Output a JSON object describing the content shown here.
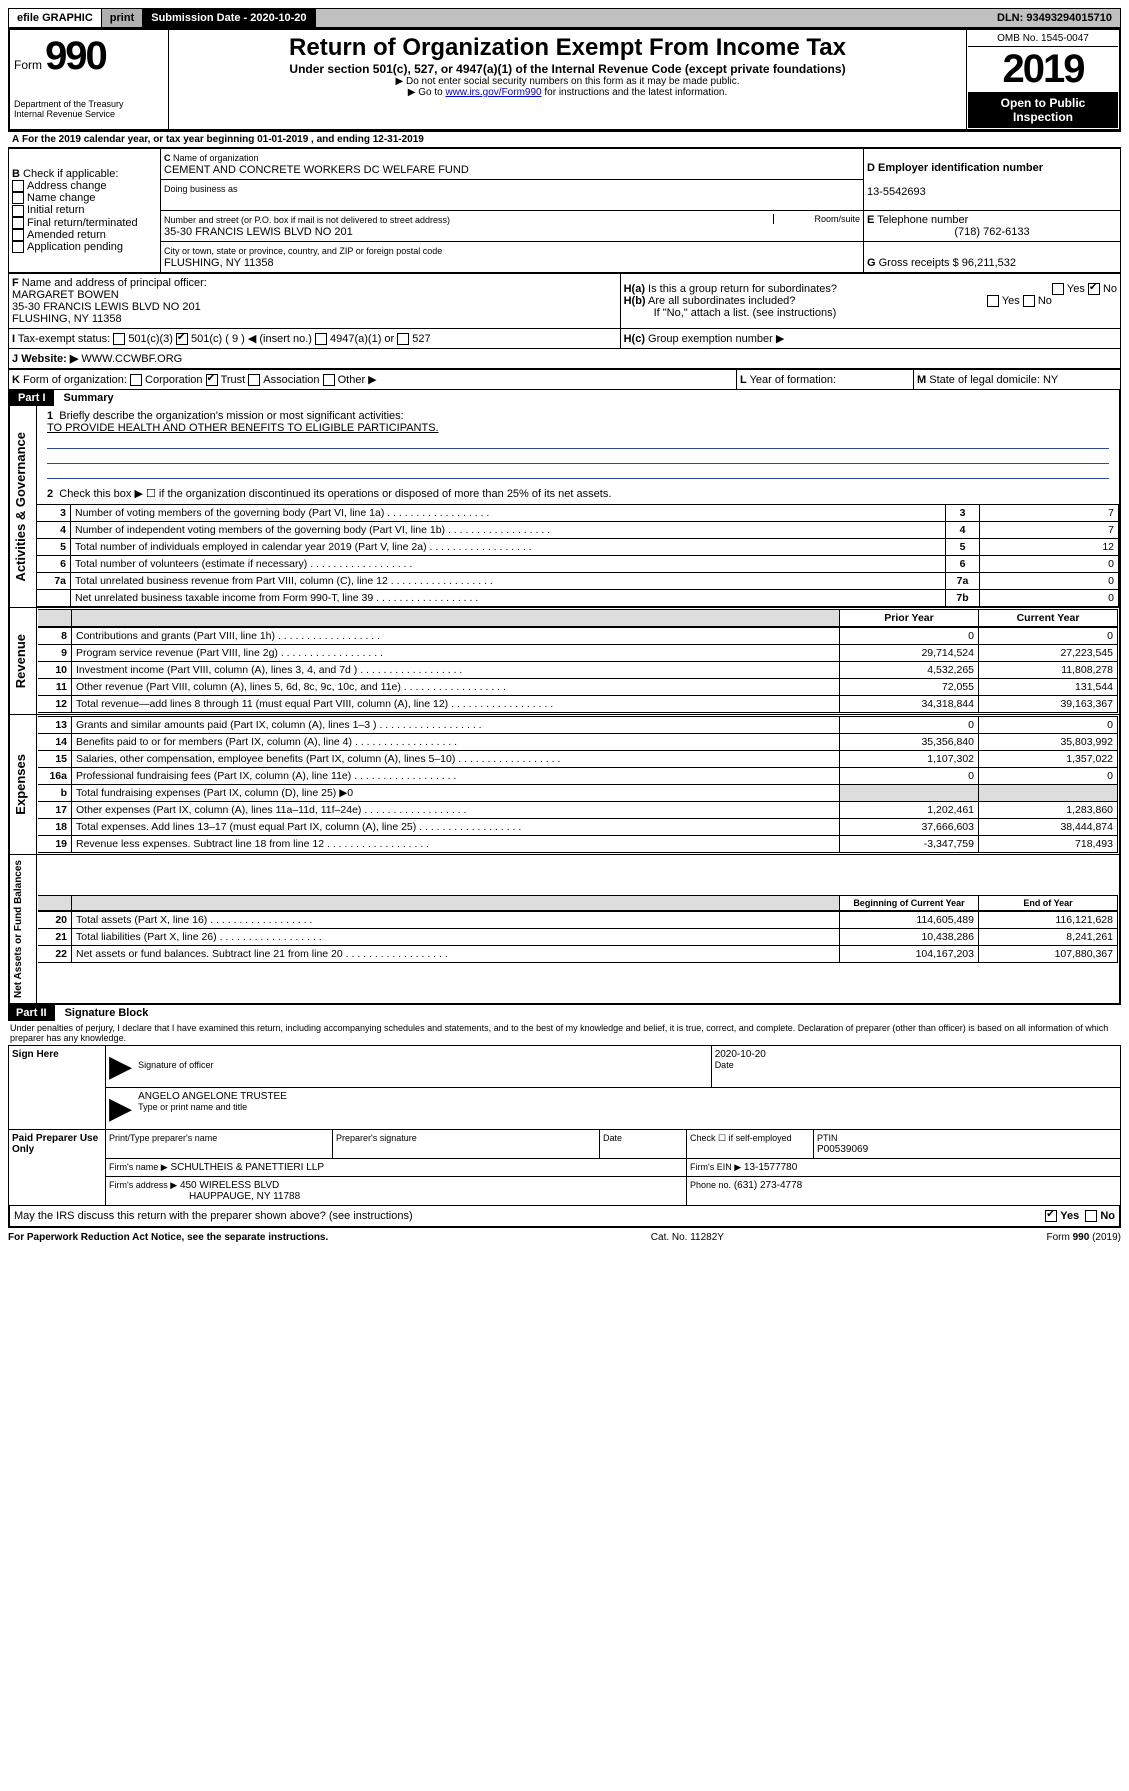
{
  "topbar": {
    "efile": "efile GRAPHIC",
    "print": "print",
    "sub_label": "Submission Date - 2020-10-20",
    "dln": "DLN: 93493294015710"
  },
  "header": {
    "form_prefix": "Form",
    "form_number": "990",
    "dept": "Department of the Treasury",
    "irs": "Internal Revenue Service",
    "title": "Return of Organization Exempt From Income Tax",
    "subtitle": "Under section 501(c), 527, or 4947(a)(1) of the Internal Revenue Code (except private foundations)",
    "note1": "Do not enter social security numbers on this form as it may be made public.",
    "note2_pre": "Go to ",
    "note2_link": "www.irs.gov/Form990",
    "note2_post": " for instructions and the latest information.",
    "omb": "OMB No. 1545-0047",
    "year": "2019",
    "open1": "Open to Public",
    "open2": "Inspection"
  },
  "lineA": "For the 2019 calendar year, or tax year beginning 01-01-2019   , and ending 12-31-2019",
  "secB": {
    "label": "Check if applicable:",
    "opts": [
      "Address change",
      "Name change",
      "Initial return",
      "Final return/terminated",
      "Amended return",
      "Application pending"
    ]
  },
  "secC": {
    "name_label": "Name of organization",
    "name": "CEMENT AND CONCRETE WORKERS DC WELFARE FUND",
    "dba_label": "Doing business as",
    "addr_label": "Number and street (or P.O. box if mail is not delivered to street address)",
    "room_label": "Room/suite",
    "addr": "35-30 FRANCIS LEWIS BLVD NO 201",
    "city_label": "City or town, state or province, country, and ZIP or foreign postal code",
    "city": "FLUSHING, NY  11358"
  },
  "secD": {
    "label": "Employer identification number",
    "val": "13-5542693"
  },
  "secE": {
    "label": "Telephone number",
    "val": "(718) 762-6133"
  },
  "secG": {
    "label": "Gross receipts $",
    "val": "96,211,532"
  },
  "secF": {
    "label": "Name and address of principal officer:",
    "name": "MARGARET BOWEN",
    "addr1": "35-30 FRANCIS LEWIS BLVD NO 201",
    "addr2": "FLUSHING, NY  11358"
  },
  "secH": {
    "a": "Is this a group return for subordinates?",
    "b": "Are all subordinates included?",
    "bnote": "If \"No,\" attach a list. (see instructions)",
    "c": "Group exemption number ▶",
    "yes": "Yes",
    "no": "No"
  },
  "secI": {
    "label": "Tax-exempt status:",
    "opts": [
      "501(c)(3)",
      "501(c) ( 9 ) ◀ (insert no.)",
      "4947(a)(1) or",
      "527"
    ]
  },
  "secJ": {
    "label": "Website: ▶",
    "val": "WWW.CCWBF.ORG"
  },
  "secK": {
    "label": "Form of organization:",
    "opts": [
      "Corporation",
      "Trust",
      "Association",
      "Other ▶"
    ]
  },
  "secL": {
    "label": "Year of formation:"
  },
  "secM": {
    "label": "State of legal domicile:",
    "val": "NY"
  },
  "part1": {
    "hdr": "Part I",
    "title": "Summary",
    "q1_label": "Briefly describe the organization's mission or most significant activities:",
    "q1_text": "TO PROVIDE HEALTH AND OTHER BENEFITS TO ELIGIBLE PARTICIPANTS.",
    "q2": "Check this box ▶ ☐ if the organization discontinued its operations or disposed of more than 25% of its net assets.",
    "vlabel_gov": "Activities & Governance",
    "vlabel_rev": "Revenue",
    "vlabel_exp": "Expenses",
    "vlabel_net": "Net Assets or Fund Balances",
    "col_prior": "Prior Year",
    "col_curr": "Current Year",
    "col_begin": "Beginning of Current Year",
    "col_end": "End of Year",
    "lines_gov": [
      {
        "n": "3",
        "d": "Number of voting members of the governing body (Part VI, line 1a)",
        "box": "3",
        "v": "7"
      },
      {
        "n": "4",
        "d": "Number of independent voting members of the governing body (Part VI, line 1b)",
        "box": "4",
        "v": "7"
      },
      {
        "n": "5",
        "d": "Total number of individuals employed in calendar year 2019 (Part V, line 2a)",
        "box": "5",
        "v": "12"
      },
      {
        "n": "6",
        "d": "Total number of volunteers (estimate if necessary)",
        "box": "6",
        "v": "0"
      },
      {
        "n": "7a",
        "d": "Total unrelated business revenue from Part VIII, column (C), line 12",
        "box": "7a",
        "v": "0"
      },
      {
        "n": "",
        "d": "Net unrelated business taxable income from Form 990-T, line 39",
        "box": "7b",
        "v": "0"
      }
    ],
    "lines_rev": [
      {
        "n": "8",
        "d": "Contributions and grants (Part VIII, line 1h)",
        "p": "0",
        "c": "0"
      },
      {
        "n": "9",
        "d": "Program service revenue (Part VIII, line 2g)",
        "p": "29,714,524",
        "c": "27,223,545"
      },
      {
        "n": "10",
        "d": "Investment income (Part VIII, column (A), lines 3, 4, and 7d )",
        "p": "4,532,265",
        "c": "11,808,278"
      },
      {
        "n": "11",
        "d": "Other revenue (Part VIII, column (A), lines 5, 6d, 8c, 9c, 10c, and 11e)",
        "p": "72,055",
        "c": "131,544"
      },
      {
        "n": "12",
        "d": "Total revenue—add lines 8 through 11 (must equal Part VIII, column (A), line 12)",
        "p": "34,318,844",
        "c": "39,163,367"
      }
    ],
    "lines_exp": [
      {
        "n": "13",
        "d": "Grants and similar amounts paid (Part IX, column (A), lines 1–3 )",
        "p": "0",
        "c": "0"
      },
      {
        "n": "14",
        "d": "Benefits paid to or for members (Part IX, column (A), line 4)",
        "p": "35,356,840",
        "c": "35,803,992"
      },
      {
        "n": "15",
        "d": "Salaries, other compensation, employee benefits (Part IX, column (A), lines 5–10)",
        "p": "1,107,302",
        "c": "1,357,022"
      },
      {
        "n": "16a",
        "d": "Professional fundraising fees (Part IX, column (A), line 11e)",
        "p": "0",
        "c": "0"
      },
      {
        "n": "b",
        "d": "Total fundraising expenses (Part IX, column (D), line 25) ▶0",
        "p": "",
        "c": "",
        "gray": true
      },
      {
        "n": "17",
        "d": "Other expenses (Part IX, column (A), lines 11a–11d, 11f–24e)",
        "p": "1,202,461",
        "c": "1,283,860"
      },
      {
        "n": "18",
        "d": "Total expenses. Add lines 13–17 (must equal Part IX, column (A), line 25)",
        "p": "37,666,603",
        "c": "38,444,874"
      },
      {
        "n": "19",
        "d": "Revenue less expenses. Subtract line 18 from line 12",
        "p": "-3,347,759",
        "c": "718,493"
      }
    ],
    "lines_net": [
      {
        "n": "20",
        "d": "Total assets (Part X, line 16)",
        "p": "114,605,489",
        "c": "116,121,628"
      },
      {
        "n": "21",
        "d": "Total liabilities (Part X, line 26)",
        "p": "10,438,286",
        "c": "8,241,261"
      },
      {
        "n": "22",
        "d": "Net assets or fund balances. Subtract line 21 from line 20",
        "p": "104,167,203",
        "c": "107,880,367"
      }
    ]
  },
  "part2": {
    "hdr": "Part II",
    "title": "Signature Block",
    "perjury": "Under penalties of perjury, I declare that I have examined this return, including accompanying schedules and statements, and to the best of my knowledge and belief, it is true, correct, and complete. Declaration of preparer (other than officer) is based on all information of which preparer has any knowledge.",
    "sign_here": "Sign Here",
    "sig_officer": "Signature of officer",
    "sig_date_label": "Date",
    "sig_date": "2020-10-20",
    "officer_name": "ANGELO ANGELONE  TRUSTEE",
    "type_name": "Type or print name and title",
    "paid": "Paid Preparer Use Only",
    "prep_name_label": "Print/Type preparer's name",
    "prep_sig_label": "Preparer's signature",
    "date_label": "Date",
    "check_self": "Check ☐ if self-employed",
    "ptin_label": "PTIN",
    "ptin": "P00539069",
    "firm_name_label": "Firm's name   ▶",
    "firm_name": "SCHULTHEIS & PANETTIERI LLP",
    "firm_ein_label": "Firm's EIN ▶",
    "firm_ein": "13-1577780",
    "firm_addr_label": "Firm's address ▶",
    "firm_addr1": "450 WIRELESS BLVD",
    "firm_addr2": "HAUPPAUGE, NY  11788",
    "phone_label": "Phone no.",
    "phone": "(631) 273-4778",
    "discuss": "May the IRS discuss this return with the preparer shown above? (see instructions)"
  },
  "footer": {
    "left": "For Paperwork Reduction Act Notice, see the separate instructions.",
    "mid": "Cat. No. 11282Y",
    "right": "Form 990 (2019)"
  }
}
